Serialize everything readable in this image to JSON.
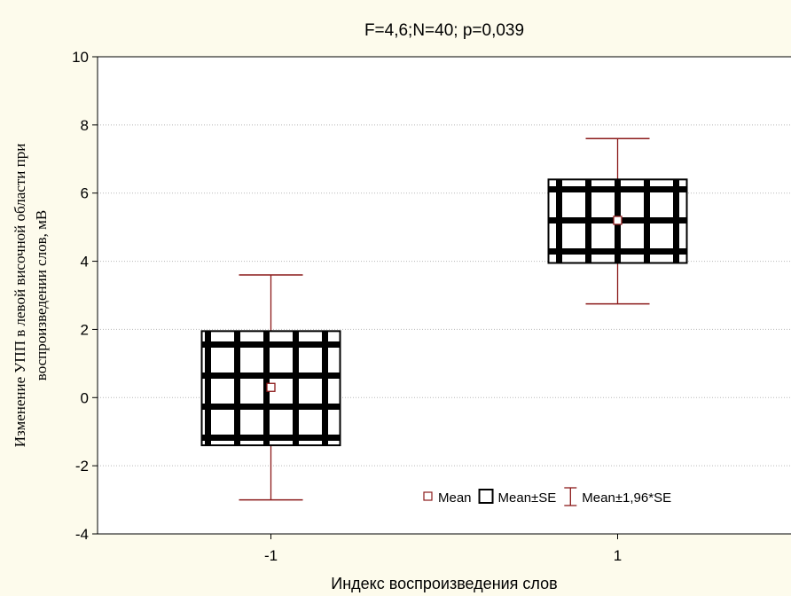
{
  "chart_data": {
    "type": "box",
    "title": "F=4,6;N=40; p=0,039",
    "xlabel": "Индекс воспроизведения слов",
    "ylabel_line1": "Изменение УПП в левой височной области при",
    "ylabel_line2": "воспроизведении слов, мВ",
    "ylim": [
      -4,
      10
    ],
    "yticks": [
      "-4",
      "-2",
      "0",
      "2",
      "4",
      "6",
      "8",
      "10"
    ],
    "categories": [
      "-1",
      "1"
    ],
    "groups": [
      {
        "category": "-1",
        "mean": 0.3,
        "se_low": -1.4,
        "se_high": 1.95,
        "ci_low": -3.0,
        "ci_high": 3.6
      },
      {
        "category": "1",
        "mean": 5.2,
        "se_low": 3.95,
        "se_high": 6.4,
        "ci_low": 2.75,
        "ci_high": 7.6
      }
    ],
    "grid": true,
    "legend": {
      "placement": "bottom-right",
      "items": [
        {
          "label": "Mean",
          "marker": "square-small"
        },
        {
          "label": "Mean±SE",
          "marker": "box"
        },
        {
          "label": "Mean±1,96*SE",
          "marker": "whisker"
        }
      ]
    },
    "colors": {
      "mean": "#8b1a1a",
      "whisker": "#8b1a1a",
      "box_pattern": "#000000",
      "background": "#fdfbec",
      "plot_bg": "#ffffff"
    }
  }
}
